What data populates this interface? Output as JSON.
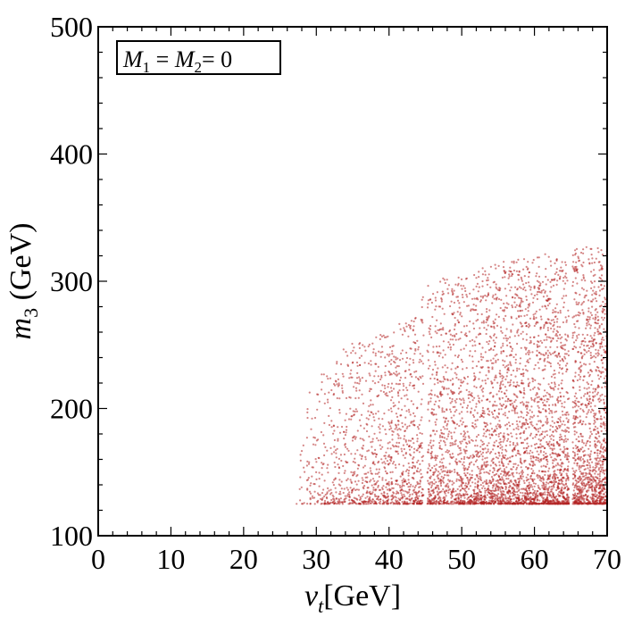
{
  "chart_data": {
    "type": "scatter",
    "title": "",
    "annotation": {
      "m1": "M",
      "m1_sub": "1",
      "eq": " = ",
      "m2": "M",
      "m2_sub": "2",
      "tail": "= 0"
    },
    "xlabel": {
      "main": "v",
      "sub": "t",
      "rest": "[GeV]"
    },
    "ylabel": {
      "main": "m",
      "sub": "3",
      "rest": " (GeV)"
    },
    "xlim": [
      0,
      70
    ],
    "ylim": [
      100,
      500
    ],
    "xticks": [
      0,
      10,
      20,
      30,
      40,
      50,
      60,
      70
    ],
    "yticks": [
      100,
      200,
      300,
      400,
      500
    ],
    "xtick_labels": [
      "0",
      "10",
      "20",
      "30",
      "40",
      "50",
      "60",
      "70"
    ],
    "ytick_labels": [
      "100",
      "200",
      "300",
      "400",
      "500"
    ],
    "marker_color": "#b22222",
    "grid": false,
    "legend": "top-left",
    "series": [
      {
        "region": "scan points (dense band)",
        "x_range": [
          27,
          70
        ],
        "y_range": [
          125,
          330
        ],
        "floor_y": 125,
        "upper_envelope": [
          [
            27,
            128
          ],
          [
            29,
            215
          ],
          [
            32,
            240
          ],
          [
            36,
            255
          ],
          [
            40,
            265
          ],
          [
            44,
            272
          ],
          [
            45,
            300
          ],
          [
            50,
            305
          ],
          [
            55,
            315
          ],
          [
            60,
            320
          ],
          [
            65,
            325
          ],
          [
            70,
            330
          ]
        ],
        "vertical_gaps_x": [
          45,
          65
        ],
        "densest_y_range": [
          125,
          180
        ]
      }
    ]
  }
}
